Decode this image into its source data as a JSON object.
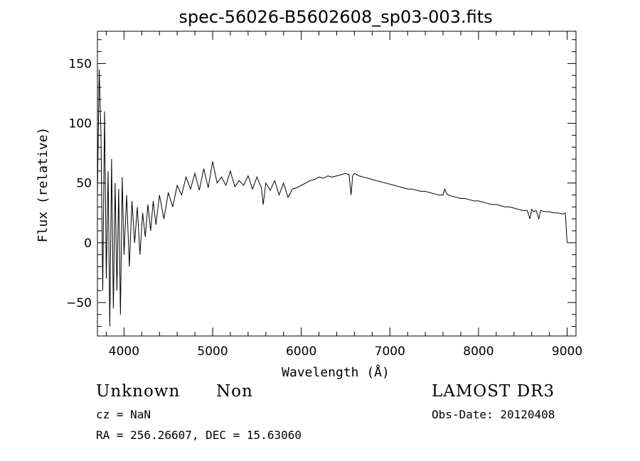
{
  "chart_data": {
    "type": "line",
    "title": "spec-56026-B5602608_sp03-003.fits",
    "xlabel": "Wavelength (Å)",
    "ylabel": "Flux (relative)",
    "xlim": [
      3700,
      9100
    ],
    "ylim": [
      -78,
      177
    ],
    "xticks": [
      4000,
      5000,
      6000,
      7000,
      8000,
      9000
    ],
    "yticks": [
      -50,
      0,
      50,
      100,
      150
    ],
    "x_tick_labels": [
      "4000",
      "5000",
      "6000",
      "7000",
      "8000",
      "9000"
    ],
    "y_tick_labels": [
      "−50",
      "0",
      "50",
      "100",
      "150"
    ],
    "grid": false,
    "line_color": "#000000",
    "series": [
      {
        "x": [
          3700,
          3720,
          3740,
          3760,
          3780,
          3800,
          3820,
          3840,
          3860,
          3880,
          3900,
          3920,
          3940,
          3960,
          3980,
          4000,
          4030,
          4060,
          4090,
          4120,
          4150,
          4180,
          4210,
          4240,
          4270,
          4300,
          4330,
          4360,
          4400,
          4450,
          4500,
          4550,
          4600,
          4650,
          4700,
          4750,
          4800,
          4850,
          4900,
          4950,
          5000,
          5050,
          5100,
          5150,
          5200,
          5250,
          5300,
          5350,
          5400,
          5450,
          5500,
          5550,
          5570,
          5600,
          5650,
          5700,
          5750,
          5800,
          5850,
          5880,
          5900,
          5950,
          6000,
          6050,
          6100,
          6150,
          6200,
          6250,
          6300,
          6350,
          6400,
          6450,
          6500,
          6540,
          6562,
          6580,
          6600,
          6650,
          6700,
          6750,
          6800,
          6850,
          6900,
          6950,
          7000,
          7050,
          7100,
          7150,
          7200,
          7250,
          7300,
          7350,
          7400,
          7450,
          7500,
          7550,
          7600,
          7620,
          7640,
          7660,
          7700,
          7750,
          7800,
          7850,
          7900,
          7950,
          8000,
          8050,
          8100,
          8150,
          8200,
          8250,
          8300,
          8350,
          8400,
          8450,
          8500,
          8550,
          8580,
          8600,
          8620,
          8650,
          8680,
          8700,
          8750,
          8800,
          8850,
          8900,
          8950,
          8980,
          9000
        ],
        "y": [
          40,
          145,
          90,
          -40,
          110,
          -30,
          60,
          -70,
          70,
          -55,
          50,
          -40,
          45,
          -60,
          55,
          -10,
          40,
          -20,
          35,
          0,
          30,
          -10,
          25,
          5,
          32,
          10,
          35,
          15,
          40,
          20,
          42,
          30,
          48,
          40,
          55,
          45,
          58,
          44,
          62,
          46,
          68,
          50,
          55,
          48,
          60,
          47,
          52,
          48,
          56,
          45,
          55,
          46,
          32,
          50,
          44,
          52,
          40,
          50,
          38,
          42,
          45,
          46,
          48,
          50,
          52,
          53,
          55,
          54,
          56,
          55,
          56,
          57,
          58,
          57,
          40,
          56,
          58,
          56,
          55,
          54,
          53,
          52,
          51,
          50,
          49,
          48,
          47,
          46,
          45,
          45,
          44,
          43,
          43,
          42,
          41,
          40,
          40,
          45,
          41,
          40,
          39,
          38,
          37,
          37,
          36,
          35,
          35,
          34,
          33,
          32,
          32,
          31,
          30,
          30,
          29,
          28,
          27,
          27,
          20,
          28,
          26,
          27,
          20,
          27,
          26,
          26,
          25,
          25,
          24,
          25,
          0
        ]
      }
    ]
  },
  "footer": {
    "object_class": "Unknown",
    "subclass": "Non",
    "survey": "LAMOST DR3",
    "redshift": "cz = NaN",
    "obs_date": "Obs-Date: 20120408",
    "coords": "RA = 256.26607, DEC =  15.63060"
  }
}
